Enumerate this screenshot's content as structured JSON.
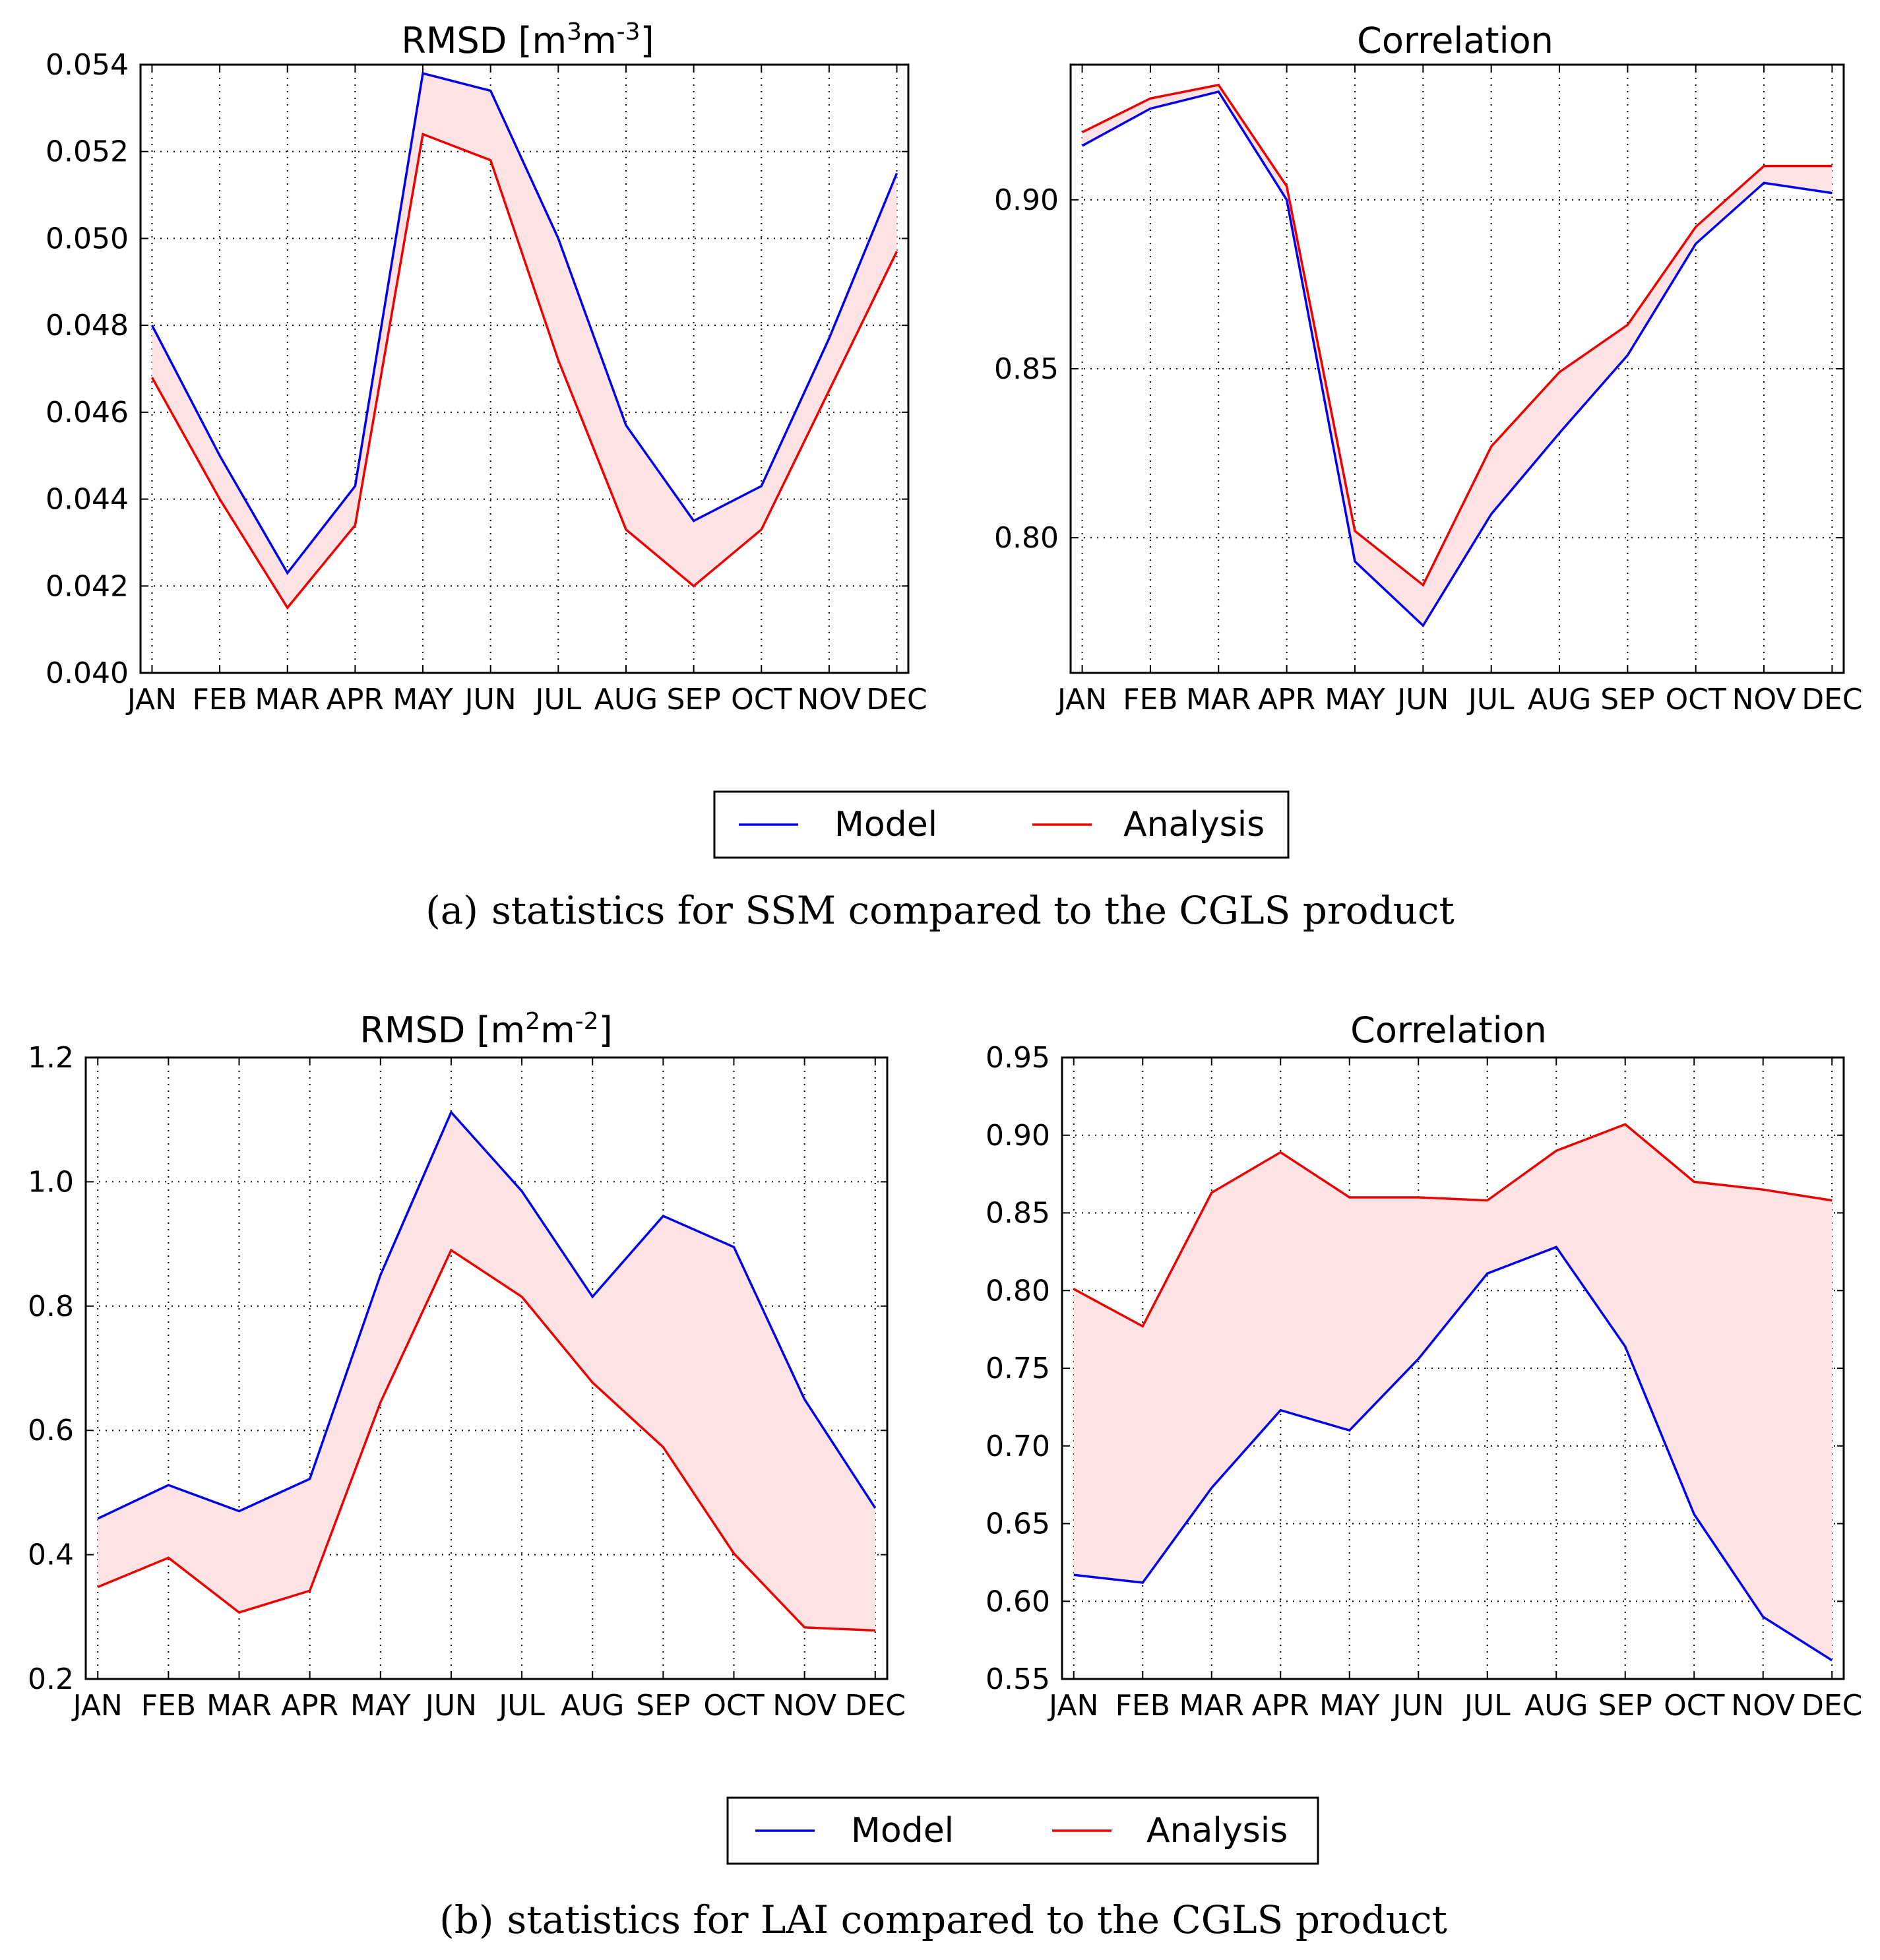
{
  "chart_data": [
    {
      "type": "line",
      "panel": "a-left",
      "title_main": "RMSD [m",
      "title_sup1": "3",
      "title_mid": "m",
      "title_sup2": "-3",
      "title_end": "]",
      "categories": [
        "JAN",
        "FEB",
        "MAR",
        "APR",
        "MAY",
        "JUN",
        "JUL",
        "AUG",
        "SEP",
        "OCT",
        "NOV",
        "DEC"
      ],
      "ylim": [
        0.04,
        0.054
      ],
      "yticks": [
        "0.040",
        "0.042",
        "0.044",
        "0.046",
        "0.048",
        "0.050",
        "0.052",
        "0.054"
      ],
      "ytick_values": [
        0.04,
        0.042,
        0.044,
        0.046,
        0.048,
        0.05,
        0.052,
        0.054
      ],
      "series": [
        {
          "name": "Model",
          "values": [
            0.048,
            0.045,
            0.0423,
            0.0443,
            0.0538,
            0.0534,
            0.05,
            0.0457,
            0.0435,
            0.0443,
            0.0477,
            0.0515
          ]
        },
        {
          "name": "Analysis",
          "values": [
            0.0468,
            0.044,
            0.0415,
            0.0434,
            0.0524,
            0.0518,
            0.0472,
            0.0433,
            0.042,
            0.0433,
            0.0465,
            0.0497
          ]
        }
      ],
      "grid": true
    },
    {
      "type": "line",
      "panel": "a-right",
      "title": "Correlation",
      "categories": [
        "JAN",
        "FEB",
        "MAR",
        "APR",
        "MAY",
        "JUN",
        "JUL",
        "AUG",
        "SEP",
        "OCT",
        "NOV",
        "DEC"
      ],
      "ylim": [
        0.76,
        0.94
      ],
      "yticks": [
        "0.80",
        "0.85",
        "0.90"
      ],
      "ytick_values": [
        0.8,
        0.85,
        0.9
      ],
      "series": [
        {
          "name": "Model",
          "values": [
            0.916,
            0.927,
            0.932,
            0.9,
            0.793,
            0.774,
            0.807,
            0.831,
            0.854,
            0.887,
            0.905,
            0.902
          ]
        },
        {
          "name": "Analysis",
          "values": [
            0.92,
            0.93,
            0.934,
            0.904,
            0.802,
            0.786,
            0.827,
            0.849,
            0.863,
            0.892,
            0.91,
            0.91
          ]
        }
      ],
      "grid": true
    },
    {
      "type": "line",
      "panel": "b-left",
      "title_main": "RMSD [m",
      "title_sup1": "2",
      "title_mid": "m",
      "title_sup2": "-2",
      "title_end": "]",
      "categories": [
        "JAN",
        "FEB",
        "MAR",
        "APR",
        "MAY",
        "JUN",
        "JUL",
        "AUG",
        "SEP",
        "OCT",
        "NOV",
        "DEC"
      ],
      "ylim": [
        0.2,
        1.2
      ],
      "yticks": [
        "0.2",
        "0.4",
        "0.6",
        "0.8",
        "1.0",
        "1.2"
      ],
      "ytick_values": [
        0.2,
        0.4,
        0.6,
        0.8,
        1.0,
        1.2
      ],
      "series": [
        {
          "name": "Model",
          "values": [
            0.458,
            0.512,
            0.47,
            0.522,
            0.85,
            1.112,
            0.985,
            0.815,
            0.945,
            0.895,
            0.65,
            0.475
          ]
        },
        {
          "name": "Analysis",
          "values": [
            0.348,
            0.395,
            0.307,
            0.342,
            0.645,
            0.89,
            0.815,
            0.677,
            0.573,
            0.402,
            0.283,
            0.278
          ]
        }
      ],
      "grid": true
    },
    {
      "type": "line",
      "panel": "b-right",
      "title": "Correlation",
      "categories": [
        "JAN",
        "FEB",
        "MAR",
        "APR",
        "MAY",
        "JUN",
        "JUL",
        "AUG",
        "SEP",
        "OCT",
        "NOV",
        "DEC"
      ],
      "ylim": [
        0.55,
        0.95
      ],
      "yticks": [
        "0.55",
        "0.60",
        "0.65",
        "0.70",
        "0.75",
        "0.80",
        "0.85",
        "0.90",
        "0.95"
      ],
      "ytick_values": [
        0.55,
        0.6,
        0.65,
        0.7,
        0.75,
        0.8,
        0.85,
        0.9,
        0.95
      ],
      "series": [
        {
          "name": "Model",
          "values": [
            0.617,
            0.612,
            0.673,
            0.723,
            0.71,
            0.756,
            0.811,
            0.828,
            0.764,
            0.656,
            0.59,
            0.562
          ]
        },
        {
          "name": "Analysis",
          "values": [
            0.801,
            0.777,
            0.863,
            0.889,
            0.86,
            0.86,
            0.858,
            0.89,
            0.907,
            0.87,
            0.865,
            0.858
          ]
        }
      ],
      "grid": true
    }
  ],
  "legend_a": {
    "model": "Model",
    "analysis": "Analysis"
  },
  "legend_b": {
    "model": "Model",
    "analysis": "Analysis"
  },
  "captions": {
    "a_label": "(a)",
    "a_text": "statistics for SSM compared to the CGLS product",
    "b_label": "(b)",
    "b_text": "statistics for LAI compared to the CGLS product"
  },
  "colors": {
    "model": "#0000ee",
    "analysis": "#ee0000",
    "band": "#fde3e3"
  }
}
